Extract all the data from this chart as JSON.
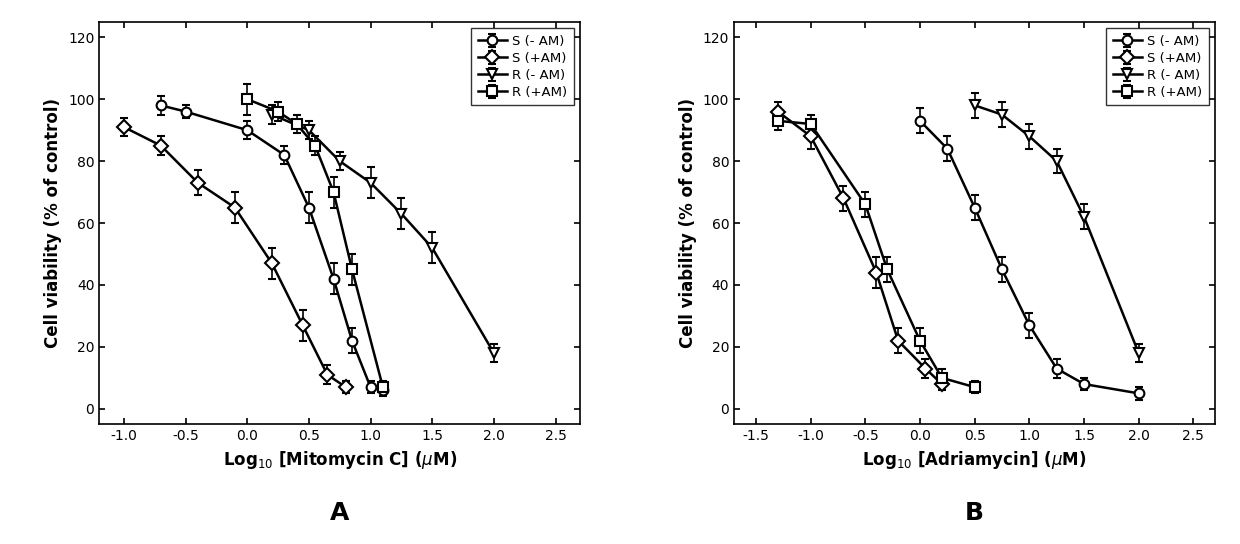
{
  "panel_A": {
    "xlabel": "Log$_{10}$ [Mitomycin C] ($\\mu$M)",
    "ylabel": "Cell viability (% of control)",
    "xlim": [
      -1.2,
      2.7
    ],
    "ylim": [
      -5,
      125
    ],
    "xticks": [
      -1.0,
      -0.5,
      0.0,
      0.5,
      1.0,
      1.5,
      2.0,
      2.5
    ],
    "yticks": [
      0,
      20,
      40,
      60,
      80,
      100,
      120
    ],
    "series": {
      "S_minus_AM": {
        "label": "S (- AM)",
        "marker": "o",
        "x": [
          -0.7,
          -0.5,
          0.0,
          0.3,
          0.5,
          0.7,
          0.85,
          1.0,
          1.1
        ],
        "y": [
          98,
          96,
          90,
          82,
          65,
          42,
          22,
          7,
          6
        ],
        "yerr": [
          3,
          2,
          3,
          3,
          5,
          5,
          4,
          2,
          2
        ]
      },
      "S_plus_AM": {
        "label": "S (+AM)",
        "marker": "D",
        "x": [
          -1.0,
          -0.7,
          -0.4,
          -0.1,
          0.2,
          0.45,
          0.65,
          0.8
        ],
        "y": [
          91,
          85,
          73,
          65,
          47,
          27,
          11,
          7
        ],
        "yerr": [
          3,
          3,
          4,
          5,
          5,
          5,
          3,
          2
        ]
      },
      "R_minus_AM": {
        "label": "R (- AM)",
        "marker": "v",
        "x": [
          0.2,
          0.5,
          0.75,
          1.0,
          1.25,
          1.5,
          2.0
        ],
        "y": [
          95,
          90,
          80,
          73,
          63,
          52,
          18
        ],
        "yerr": [
          3,
          3,
          3,
          5,
          5,
          5,
          3
        ]
      },
      "R_plus_AM": {
        "label": "R (+AM)",
        "marker": "s",
        "x": [
          0.0,
          0.25,
          0.4,
          0.55,
          0.7,
          0.85,
          1.1
        ],
        "y": [
          100,
          96,
          92,
          85,
          70,
          45,
          7
        ],
        "yerr": [
          5,
          3,
          3,
          3,
          5,
          5,
          2
        ]
      }
    }
  },
  "panel_B": {
    "xlabel": "Log$_{10}$ [Adriamycin] ($\\mu$M)",
    "ylabel": "Cell viability (% of control)",
    "xlim": [
      -1.7,
      2.7
    ],
    "ylim": [
      -5,
      125
    ],
    "xticks": [
      -1.5,
      -1.0,
      -0.5,
      0.0,
      0.5,
      1.0,
      1.5,
      2.0,
      2.5
    ],
    "yticks": [
      0,
      20,
      40,
      60,
      80,
      100,
      120
    ],
    "series": {
      "S_minus_AM": {
        "label": "S (- AM)",
        "marker": "o",
        "x": [
          0.0,
          0.25,
          0.5,
          0.75,
          1.0,
          1.25,
          1.5,
          2.0
        ],
        "y": [
          93,
          84,
          65,
          45,
          27,
          13,
          8,
          5
        ],
        "yerr": [
          4,
          4,
          4,
          4,
          4,
          3,
          2,
          2
        ]
      },
      "S_plus_AM": {
        "label": "S (+AM)",
        "marker": "D",
        "x": [
          -1.3,
          -1.0,
          -0.7,
          -0.4,
          -0.2,
          0.05,
          0.2
        ],
        "y": [
          96,
          88,
          68,
          44,
          22,
          13,
          8
        ],
        "yerr": [
          3,
          4,
          4,
          5,
          4,
          3,
          2
        ]
      },
      "R_minus_AM": {
        "label": "R (- AM)",
        "marker": "v",
        "x": [
          0.5,
          0.75,
          1.0,
          1.25,
          1.5,
          2.0
        ],
        "y": [
          98,
          95,
          88,
          80,
          62,
          18
        ],
        "yerr": [
          4,
          4,
          4,
          4,
          4,
          3
        ]
      },
      "R_plus_AM": {
        "label": "R (+AM)",
        "marker": "s",
        "x": [
          -1.3,
          -1.0,
          -0.5,
          -0.3,
          0.0,
          0.2,
          0.5
        ],
        "y": [
          93,
          92,
          66,
          45,
          22,
          10,
          7
        ],
        "yerr": [
          3,
          3,
          4,
          4,
          4,
          3,
          2
        ]
      }
    }
  },
  "line_color": "#000000",
  "marker_size": 7,
  "linewidth": 1.8,
  "capsize": 3,
  "elinewidth": 1.2,
  "legend_fontsize": 9.5,
  "axis_label_fontsize": 12,
  "tick_fontsize": 10,
  "panel_label_fontsize": 18
}
